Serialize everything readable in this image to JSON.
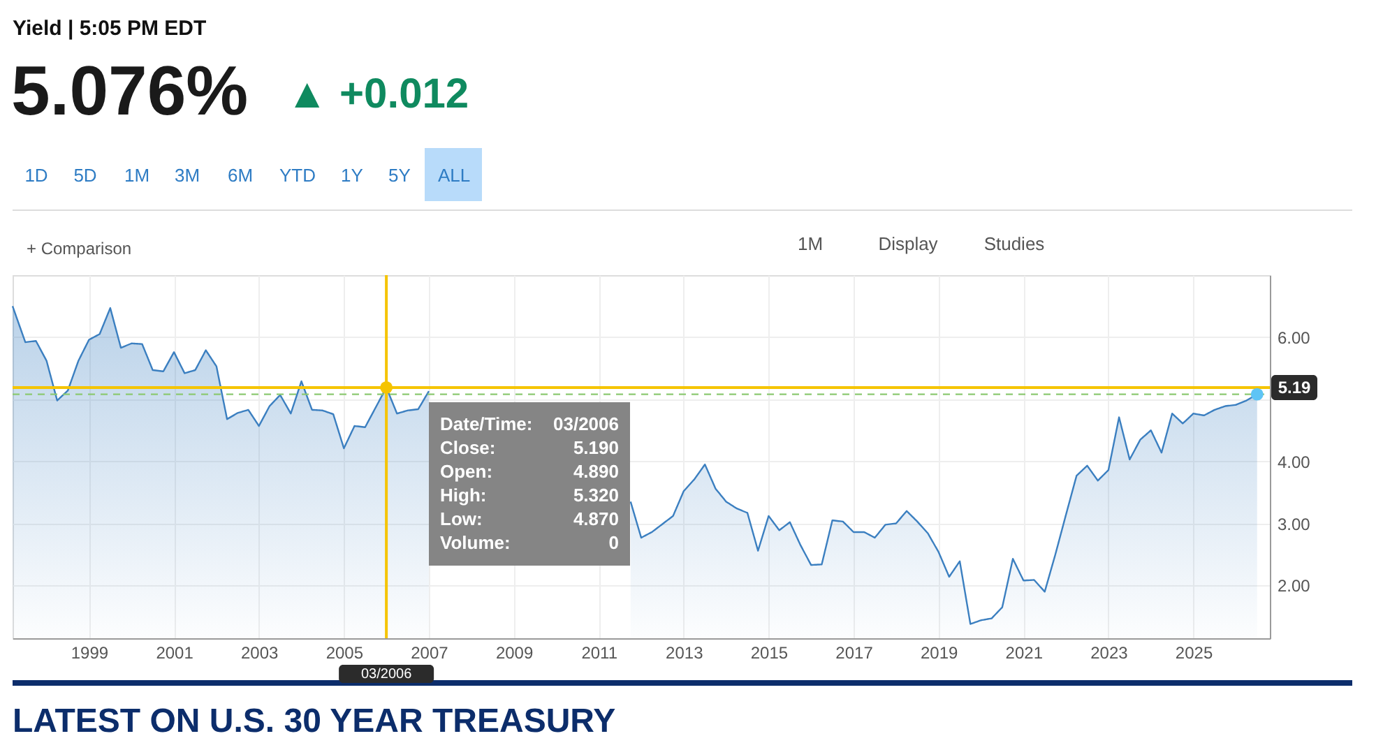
{
  "chart_data": {
    "type": "area",
    "title": "Yield | 5:05 PM EDT",
    "subtitle": "5.076%",
    "annotations": [
      "▲ +0.012",
      "1D",
      "5D",
      "1M",
      "3M",
      "6M",
      "YTD",
      "1Y",
      "5Y",
      "ALL",
      "+ Comparison",
      "1M",
      "Display",
      "Studies",
      "Date/Time:",
      "03/2006",
      "Close:",
      "5.190",
      "Open:",
      "4.890",
      "High:",
      "5.320",
      "Low:",
      "4.870",
      "Volume:",
      "0",
      "LATEST ON U.S. 30 YEAR TREASURY"
    ],
    "series": [
      {
        "color": "#3b7fc0",
        "x": [
          1997.2,
          1997.5,
          1997.75,
          1998,
          1998.25,
          1998.5,
          1998.75,
          1999,
          1999.25,
          1999.5,
          1999.75,
          2000,
          2000.25,
          2000.5,
          2000.75,
          2001,
          2001.25,
          2001.5,
          2001.75,
          2002,
          2002.25,
          2002.5,
          2002.75,
          2003,
          2003.25,
          2003.5,
          2003.75,
          2004,
          2004.25,
          2004.5,
          2004.75,
          2005,
          2005.25,
          2005.5,
          2005.75,
          2006,
          2006.25,
          2006.5,
          2006.75,
          2007,
          2007.25,
          2007.5,
          2007.75,
          2008,
          2008.25,
          2008.5,
          2008.75,
          2009,
          2009.25,
          2009.5,
          2009.75,
          2010,
          2010.25,
          2010.5,
          2010.75,
          2011,
          2011.25,
          2011.5,
          2011.75,
          2012,
          2012.25,
          2012.5,
          2012.75,
          2013,
          2013.25,
          2013.5,
          2013.75,
          2014,
          2014.25,
          2014.5,
          2014.75,
          2015,
          2015.25,
          2015.5,
          2015.75,
          2016,
          2016.25,
          2016.5,
          2016.75,
          2017,
          2017.25,
          2017.5,
          2017.75,
          2018,
          2018.25,
          2018.5,
          2018.75,
          2019,
          2019.25,
          2019.5,
          2019.75,
          2020,
          2020.25,
          2020.5,
          2020.75,
          2021,
          2021.25,
          2021.5,
          2021.75,
          2022,
          2022.25,
          2022.5,
          2022.75,
          2023,
          2023.25,
          2023.5,
          2023.75,
          2024,
          2024.25,
          2024.5,
          2024.75,
          2025,
          2025.25,
          2025.5,
          2025.75,
          2026,
          2026.25,
          2026.5
        ],
        "values": [
          6.5,
          5.92,
          5.94,
          5.62,
          4.98,
          5.14,
          5.62,
          5.96,
          6.05,
          6.47,
          5.83,
          5.9,
          5.89,
          5.47,
          5.45,
          5.76,
          5.42,
          5.47,
          5.79,
          5.53,
          4.68,
          4.78,
          4.83,
          4.57,
          4.89,
          5.07,
          4.77,
          5.29,
          4.83,
          4.82,
          4.76,
          4.21,
          4.57,
          4.55,
          4.87,
          5.19,
          4.77,
          4.82,
          4.84,
          5.13,
          null,
          null,
          null,
          null,
          null,
          null,
          null,
          null,
          null,
          null,
          null,
          null,
          null,
          null,
          null,
          null,
          null,
          null,
          3.35,
          2.77,
          2.86,
          2.99,
          3.12,
          3.52,
          3.71,
          3.95,
          3.56,
          3.35,
          3.24,
          3.17,
          2.56,
          3.12,
          2.89,
          3.02,
          2.65,
          2.33,
          2.34,
          3.05,
          3.03,
          2.86,
          2.86,
          2.77,
          2.98,
          3.0,
          3.2,
          3.03,
          2.84,
          2.54,
          2.14,
          2.39,
          1.38,
          1.44,
          1.47,
          1.65,
          2.43,
          2.08,
          2.09,
          1.9,
          2.5,
          3.14,
          3.77,
          3.93,
          3.69,
          3.86,
          4.71,
          4.03,
          4.35,
          4.5,
          4.14,
          4.77,
          4.61,
          4.77,
          4.74,
          4.83,
          4.89,
          4.91,
          4.98,
          5.08
        ]
      },
      {
        "type": "scatter",
        "marker": "circle",
        "color": "#f5c400",
        "x": [
          2006
        ],
        "values": [
          5.19
        ]
      },
      {
        "type": "scatter",
        "marker": "circle",
        "color": "#5ec4f5",
        "x": [
          2026.5
        ],
        "values": [
          5.08
        ]
      }
    ],
    "xlim": [
      1997.2,
      2026.8
    ],
    "ylim": [
      1.15,
      7.0
    ],
    "xticks": [
      1999,
      2001,
      2003,
      2005,
      2007,
      2009,
      2011,
      2013,
      2015,
      2017,
      2019,
      2021,
      2023,
      2025
    ],
    "yticks": [
      {
        "value": 2,
        "label": "2.00"
      },
      {
        "value": 3,
        "label": "3.00"
      },
      {
        "value": 4,
        "label": "4.00"
      },
      {
        "value": 5,
        "label": null
      },
      {
        "value": 6,
        "label": "6.00"
      }
    ],
    "grid": true,
    "ref_lines": [
      {
        "axis": "y",
        "value": 5.08,
        "color": "#8cc972",
        "line_style": "dashed"
      },
      {
        "axis": "y",
        "value": 5.19,
        "label": "5.19",
        "color": "#f5c400"
      },
      {
        "axis": "x",
        "value": 2006,
        "label": "03/2006",
        "color": "#f5c400"
      }
    ]
  }
}
